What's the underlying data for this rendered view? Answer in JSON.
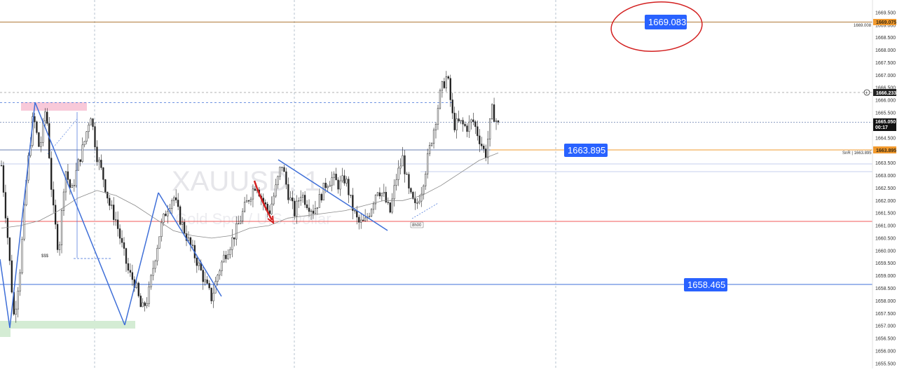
{
  "chart_data": {
    "type": "line",
    "symbol": "XAUUSD, 1",
    "instrument_name": "Gold Spot / U.S. Dollar",
    "y_ticks": [
      "1669.500",
      "1669.000",
      "1668.500",
      "1668.000",
      "1667.500",
      "1667.000",
      "1666.500",
      "1666.000",
      "1665.500",
      "1665.000",
      "1664.500",
      "1664.000",
      "1663.500",
      "1663.000",
      "1662.500",
      "1662.000",
      "1661.500",
      "1661.000",
      "1660.500",
      "1660.000",
      "1659.500",
      "1659.000",
      "1658.500",
      "1658.000",
      "1657.500",
      "1657.000",
      "1656.500",
      "1656.000",
      "1655.500"
    ],
    "ylim": [
      1655.3,
      1670.0
    ],
    "price_series": [
      1663.4,
      1660.5,
      1657.3,
      1659.4,
      1663.1,
      1665.4,
      1664.0,
      1665.8,
      1661.9,
      1659.9,
      1663.3,
      1662.3,
      1663.4,
      1664.3,
      1665.5,
      1663.8,
      1662.9,
      1661.8,
      1661.2,
      1660.1,
      1659.1,
      1658.7,
      1657.6,
      1658.1,
      1659.6,
      1660.9,
      1661.7,
      1662.2,
      1661.3,
      1660.6,
      1660.0,
      1659.4,
      1658.7,
      1658.1,
      1659.1,
      1659.8,
      1660.3,
      1660.9,
      1661.6,
      1662.2,
      1662.7,
      1662.0,
      1661.5,
      1662.4,
      1663.5,
      1662.3,
      1661.5,
      1662.3,
      1661.9,
      1661.6,
      1662.1,
      1662.7,
      1662.9,
      1662.6,
      1662.9,
      1661.8,
      1661.1,
      1661.1,
      1661.7,
      1662.5,
      1662.2,
      1661.5,
      1662.9,
      1663.7,
      1662.3,
      1661.7,
      1662.5,
      1663.8,
      1665.0,
      1666.4,
      1667.0,
      1665.0,
      1665.1,
      1664.9,
      1665.2,
      1664.5,
      1663.8,
      1665.6,
      1665.0
    ],
    "moving_average": [
      1660.9,
      1661.0,
      1661.2,
      1661.6,
      1662.1,
      1662.4,
      1662.2,
      1661.8,
      1661.3,
      1660.8,
      1660.6,
      1660.5,
      1660.6,
      1660.9,
      1661.0,
      1661.3,
      1661.4,
      1661.5,
      1661.6,
      1661.8,
      1662.0,
      1662.0,
      1662.2,
      1662.6,
      1663.1,
      1663.6,
      1663.9
    ],
    "horizontal_levels": [
      1669.075,
      1665.05,
      1663.895,
      1663.895,
      1663.0,
      1658.465,
      1661.0,
      1666.233,
      1665.78
    ],
    "price_tags": {
      "top_orange": "1669.075",
      "top_orange_left": "1669.008",
      "current": "1666.233",
      "live_price": "1665.050",
      "live_time": "00:17",
      "support": "1663.895",
      "support_note": "SnR | 1663.895"
    },
    "annotations": {
      "target_high": "1669.083",
      "mid_level": "1663.895",
      "low_level": "1658.465",
      "liquidity_mark": "$$$",
      "small_label": "8h00"
    },
    "colors": {
      "orange": "#f29a2e",
      "blue_label": "#2962ff",
      "blue_line": "#3f6fd8",
      "red_line": "#f05a5a",
      "red_circle": "#d32020",
      "candle": "#222222",
      "pink_zone": "#f8c9d9",
      "green_zone": "#d4ecd4"
    }
  }
}
